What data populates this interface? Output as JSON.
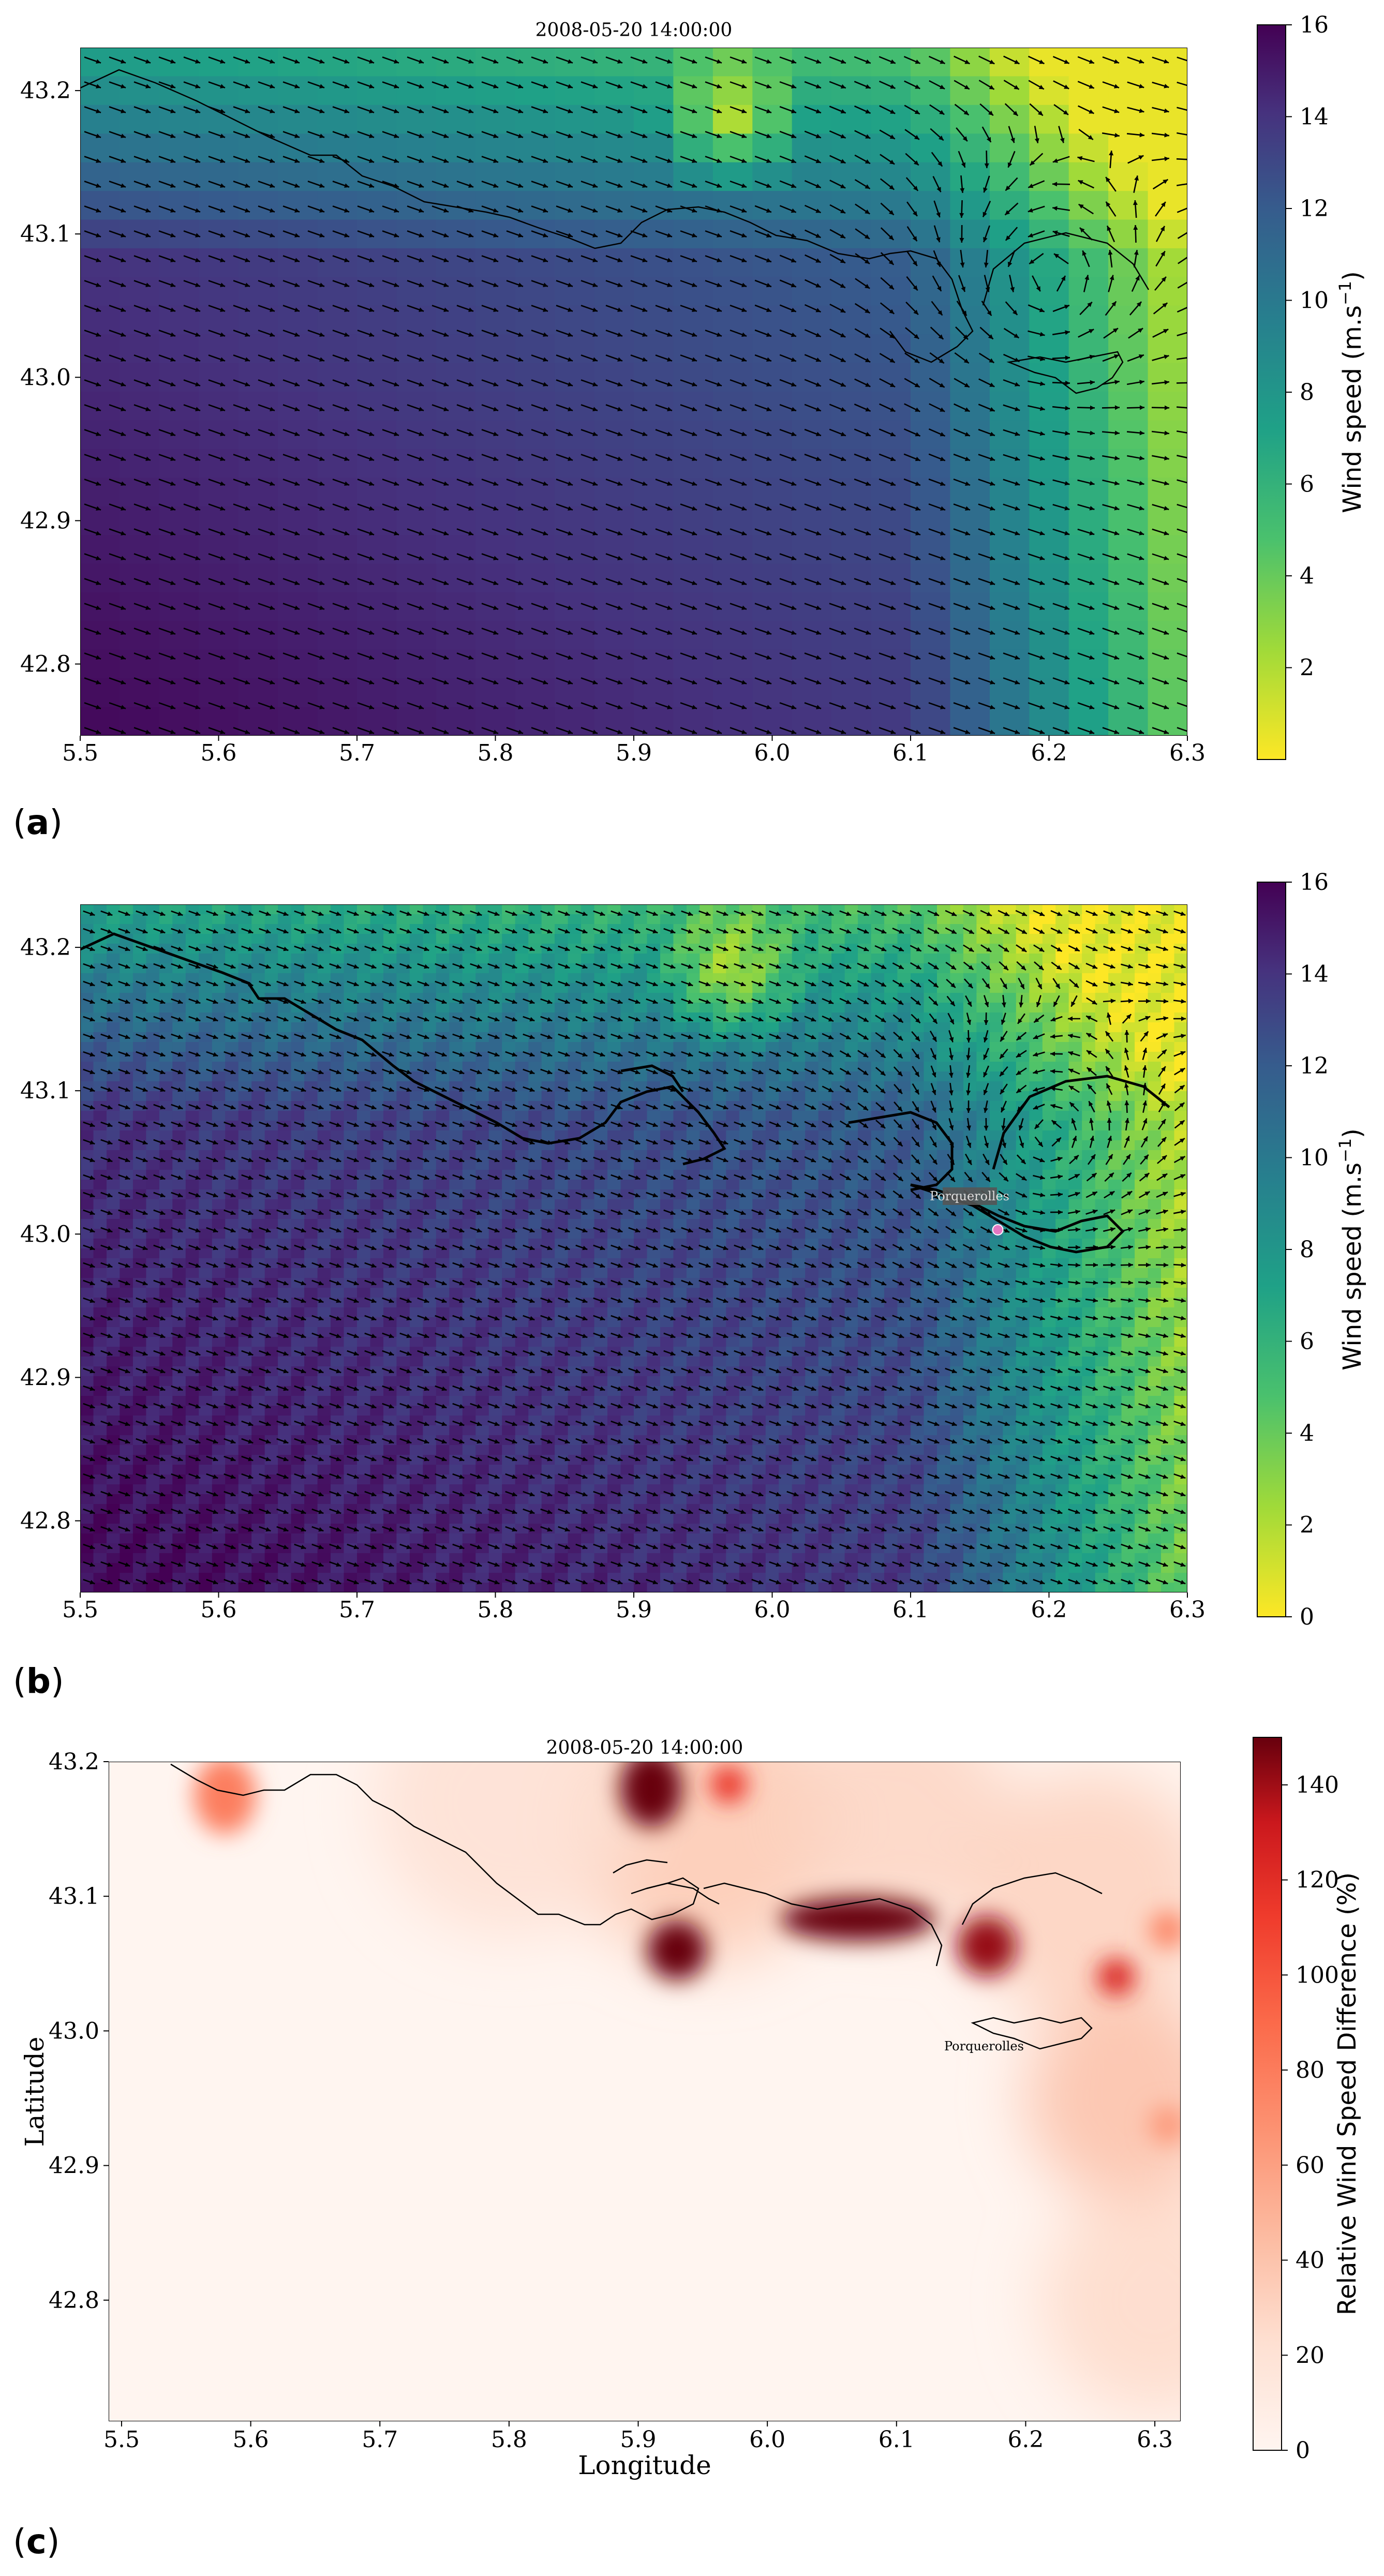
{
  "chart_data": [
    {
      "type": "heatmap",
      "subtype": "wind-speed-vector-field",
      "panel_label": "a",
      "title": "2008-05-20 14:00:00",
      "xlabel": "",
      "ylabel": "",
      "xlim": [
        5.5,
        6.3
      ],
      "ylim": [
        42.75,
        43.23
      ],
      "x_ticks": [
        "5.5",
        "5.6",
        "5.7",
        "5.8",
        "5.9",
        "6.0",
        "6.1",
        "6.2",
        "6.3"
      ],
      "y_ticks": [
        "42.8",
        "42.9",
        "43.0",
        "43.1",
        "43.2"
      ],
      "colorbar": {
        "label": "Wind speed (m.s",
        "label_sup": "−1",
        "label_end": ")",
        "range": [
          0,
          16
        ],
        "ticks": [
          "2",
          "4",
          "6",
          "8",
          "10",
          "12",
          "14",
          "16"
        ],
        "colormap": "viridis_r"
      },
      "grid": false,
      "cyclone_center": [
        6.2,
        43.07
      ],
      "field_description_values": {
        "sw_corner_speed": 15.5,
        "open_sea_speed": 13,
        "east_coast_speed": 4,
        "nw_speed": 9
      }
    },
    {
      "type": "heatmap",
      "subtype": "wind-speed-vector-field",
      "panel_label": "b",
      "title": "",
      "xlabel": "",
      "ylabel": "",
      "xlim": [
        5.5,
        6.3
      ],
      "ylim": [
        42.75,
        43.23
      ],
      "x_ticks": [
        "5.5",
        "5.6",
        "5.7",
        "5.8",
        "5.9",
        "6.0",
        "6.1",
        "6.2",
        "6.3"
      ],
      "y_ticks": [
        "42.8",
        "42.9",
        "43.0",
        "43.1",
        "43.2"
      ],
      "colorbar": {
        "label": "Wind speed (m.s",
        "label_sup": "−1",
        "label_end": ")",
        "range": [
          0,
          16
        ],
        "ticks": [
          "0",
          "2",
          "4",
          "6",
          "8",
          "10",
          "12",
          "14",
          "16"
        ],
        "colormap": "viridis_r"
      },
      "grid": false,
      "annotation": {
        "text": "Porquerolles",
        "x": 6.16,
        "y": 43.0
      },
      "marker": {
        "lon": 6.163,
        "lat": 43.003,
        "color": "#e377c2"
      }
    },
    {
      "type": "heatmap",
      "subtype": "relative-difference",
      "panel_label": "c",
      "title": "2008-05-20 14:00:00",
      "xlabel": "Longitude",
      "ylabel": "Latitude",
      "xlim": [
        5.49,
        6.32
      ],
      "ylim": [
        42.71,
        43.2
      ],
      "x_ticks": [
        "5.5",
        "5.6",
        "5.7",
        "5.8",
        "5.9",
        "6.0",
        "6.1",
        "6.2",
        "6.3"
      ],
      "y_ticks": [
        "42.8",
        "42.9",
        "43.0",
        "43.1",
        "43.2"
      ],
      "colorbar": {
        "label": "Relative Wind Speed Difference (%)",
        "range": [
          0,
          150
        ],
        "ticks": [
          "0",
          "20",
          "40",
          "60",
          "80",
          "100",
          "120",
          "140"
        ],
        "colormap": "Reds"
      },
      "grid": false,
      "annotation": {
        "text": "Porquerolles",
        "x": 6.18,
        "y": 42.985
      },
      "hotspots": [
        {
          "lon": 5.91,
          "lat": 43.18,
          "value": 150
        },
        {
          "lon": 5.93,
          "lat": 43.06,
          "value": 150
        },
        {
          "lon": 6.07,
          "lat": 43.083,
          "value": 150
        },
        {
          "lon": 6.17,
          "lat": 43.063,
          "value": 140
        },
        {
          "lon": 6.27,
          "lat": 43.04,
          "value": 120
        },
        {
          "lon": 5.58,
          "lat": 43.175,
          "value": 75
        },
        {
          "lon": 5.97,
          "lat": 43.183,
          "value": 110
        },
        {
          "lon": 6.31,
          "lat": 42.93,
          "value": 60
        },
        {
          "lon": 6.31,
          "lat": 43.075,
          "value": 70
        }
      ]
    }
  ]
}
